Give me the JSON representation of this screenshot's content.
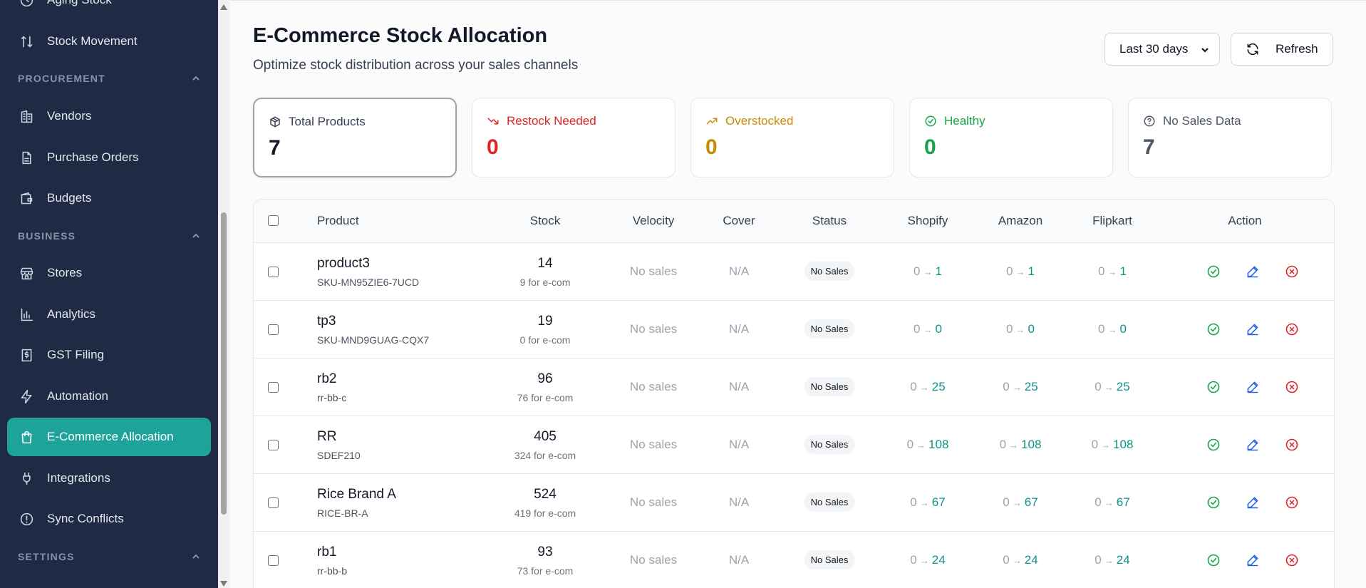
{
  "sidebar": {
    "items": [
      {
        "label": "Aging Stock",
        "icon": "clock-icon"
      },
      {
        "label": "Stock Movement",
        "icon": "arrows-up-down-icon"
      },
      {
        "label": "Vendors",
        "icon": "building-icon"
      },
      {
        "label": "Purchase Orders",
        "icon": "document-icon"
      },
      {
        "label": "Budgets",
        "icon": "wallet-icon"
      },
      {
        "label": "Stores",
        "icon": "store-icon"
      },
      {
        "label": "Analytics",
        "icon": "bar-chart-icon"
      },
      {
        "label": "GST Filing",
        "icon": "receipt-icon"
      },
      {
        "label": "Automation",
        "icon": "lightning-icon"
      },
      {
        "label": "E-Commerce Allocation",
        "icon": "shopping-bag-icon"
      },
      {
        "label": "Integrations",
        "icon": "plug-icon"
      },
      {
        "label": "Sync Conflicts",
        "icon": "alert-circle-icon"
      }
    ],
    "sections": {
      "procurement": "PROCUREMENT",
      "business": "BUSINESS",
      "settings": "SETTINGS"
    }
  },
  "header": {
    "title": "E-Commerce Stock Allocation",
    "subtitle": "Optimize stock distribution across your sales channels",
    "range_label": "Last 30 days",
    "refresh_label": "Refresh"
  },
  "stats": [
    {
      "label": "Total Products",
      "value": "7",
      "color": "#111827",
      "icon": "box-icon"
    },
    {
      "label": "Restock Needed",
      "value": "0",
      "color": "#dc2626",
      "icon": "trending-down-icon"
    },
    {
      "label": "Overstocked",
      "value": "0",
      "color": "#ca8a04",
      "icon": "trending-up-icon"
    },
    {
      "label": "Healthy",
      "value": "0",
      "color": "#16a34a",
      "icon": "check-circle-icon"
    },
    {
      "label": "No Sales Data",
      "value": "7",
      "color": "#4b5563",
      "icon": "help-circle-icon"
    }
  ],
  "table": {
    "columns": [
      "Product",
      "Stock",
      "Velocity",
      "Cover",
      "Status",
      "Shopify",
      "Amazon",
      "Flipkart",
      "Action"
    ],
    "rows": [
      {
        "name": "product3",
        "sku": "SKU-MN95ZIE6-7UCD",
        "stock": "14",
        "ecom": "9 for e-com",
        "velocity": "No sales",
        "cover": "N/A",
        "status": "No Sales",
        "shopify_from": "0",
        "shopify_to": "1",
        "amazon_from": "0",
        "amazon_to": "1",
        "flipkart_from": "0",
        "flipkart_to": "1"
      },
      {
        "name": "tp3",
        "sku": "SKU-MND9GUAG-CQX7",
        "stock": "19",
        "ecom": "0 for e-com",
        "velocity": "No sales",
        "cover": "N/A",
        "status": "No Sales",
        "shopify_from": "0",
        "shopify_to": "0",
        "amazon_from": "0",
        "amazon_to": "0",
        "flipkart_from": "0",
        "flipkart_to": "0"
      },
      {
        "name": "rb2",
        "sku": "rr-bb-c",
        "stock": "96",
        "ecom": "76 for e-com",
        "velocity": "No sales",
        "cover": "N/A",
        "status": "No Sales",
        "shopify_from": "0",
        "shopify_to": "25",
        "amazon_from": "0",
        "amazon_to": "25",
        "flipkart_from": "0",
        "flipkart_to": "25"
      },
      {
        "name": "RR",
        "sku": "SDEF210",
        "stock": "405",
        "ecom": "324 for e-com",
        "velocity": "No sales",
        "cover": "N/A",
        "status": "No Sales",
        "shopify_from": "0",
        "shopify_to": "108",
        "amazon_from": "0",
        "amazon_to": "108",
        "flipkart_from": "0",
        "flipkart_to": "108"
      },
      {
        "name": "Rice Brand A",
        "sku": "RICE-BR-A",
        "stock": "524",
        "ecom": "419 for e-com",
        "velocity": "No sales",
        "cover": "N/A",
        "status": "No Sales",
        "shopify_from": "0",
        "shopify_to": "67",
        "amazon_from": "0",
        "amazon_to": "67",
        "flipkart_from": "0",
        "flipkart_to": "67"
      },
      {
        "name": "rb1",
        "sku": "rr-bb-b",
        "stock": "93",
        "ecom": "73 for e-com",
        "velocity": "No sales",
        "cover": "N/A",
        "status": "No Sales",
        "shopify_from": "0",
        "shopify_to": "24",
        "amazon_from": "0",
        "amazon_to": "24",
        "flipkart_from": "0",
        "flipkart_to": "24"
      }
    ]
  },
  "colors": {
    "sidebar_bg": "#1f2a44",
    "accent": "#1ea39b",
    "allocation_to": "#0d9488",
    "approve": "#16a34a",
    "edit": "#2563eb",
    "reject": "#dc2626"
  }
}
